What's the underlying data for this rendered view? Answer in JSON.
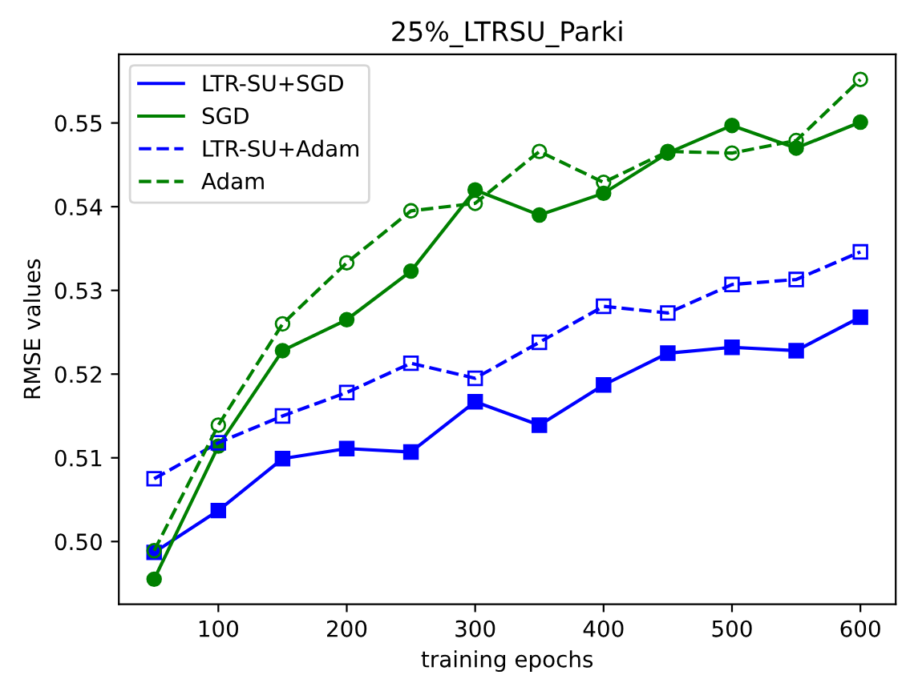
{
  "chart_data": {
    "type": "line",
    "title": "25%_LTRSU_Parki",
    "xlabel": "training epochs",
    "ylabel": "RMSE values",
    "x": [
      50,
      100,
      150,
      200,
      250,
      300,
      350,
      400,
      450,
      500,
      550,
      600
    ],
    "series": [
      {
        "name": "LTR-SU+SGD",
        "color": "#0000ff",
        "marker": "square",
        "line_style": "solid",
        "values": [
          0.4987,
          0.5037,
          0.5099,
          0.5111,
          0.5107,
          0.5167,
          0.5139,
          0.5187,
          0.5225,
          0.5232,
          0.5228,
          0.5268
        ]
      },
      {
        "name": "SGD",
        "color": "#008000",
        "marker": "circle",
        "line_style": "solid",
        "values": [
          0.4955,
          0.5114,
          0.5228,
          0.5265,
          0.5323,
          0.542,
          0.539,
          0.5416,
          0.5464,
          0.5497,
          0.547,
          0.5501
        ]
      },
      {
        "name": "LTR-SU+Adam",
        "color": "#0000ff",
        "marker": "square",
        "line_style": "dashed",
        "values": [
          0.5075,
          0.5118,
          0.515,
          0.5178,
          0.5213,
          0.5195,
          0.5238,
          0.5281,
          0.5273,
          0.5307,
          0.5313,
          0.5346
        ]
      },
      {
        "name": "Adam",
        "color": "#008000",
        "marker": "circle",
        "line_style": "dashed",
        "values": [
          0.4989,
          0.5139,
          0.526,
          0.5333,
          0.5395,
          0.5404,
          0.5466,
          0.5429,
          0.5466,
          0.5464,
          0.5479,
          0.5552
        ]
      }
    ],
    "xlim": [
      22.5,
      627.5
    ],
    "ylim": [
      0.4925,
      0.5582
    ],
    "xticks": [
      100,
      200,
      300,
      400,
      500,
      600
    ],
    "yticks": [
      {
        "value": 0.5,
        "label": "0.50"
      },
      {
        "value": 0.51,
        "label": "0.51"
      },
      {
        "value": 0.52,
        "label": "0.52"
      },
      {
        "value": 0.53,
        "label": "0.53"
      },
      {
        "value": 0.54,
        "label": "0.54"
      },
      {
        "value": 0.55,
        "label": "0.55"
      }
    ],
    "grid": false,
    "legend": "top left"
  }
}
